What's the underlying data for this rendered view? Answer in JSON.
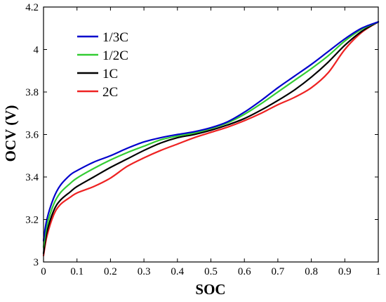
{
  "chart_data": {
    "type": "line",
    "xlabel": "SOC",
    "ylabel": "OCV (V)",
    "xlim": [
      0,
      1
    ],
    "ylim": [
      3,
      4.2
    ],
    "xticks": [
      "0",
      "0.1",
      "0.2",
      "0.3",
      "0.4",
      "0.5",
      "0.6",
      "0.7",
      "0.8",
      "0.9",
      "1"
    ],
    "yticks": [
      "3",
      "3.2",
      "3.4",
      "3.6",
      "3.8",
      "4",
      "4.2"
    ],
    "grid": false,
    "legend_position": "top-left",
    "x": [
      0,
      0.01,
      0.03,
      0.05,
      0.08,
      0.1,
      0.15,
      0.2,
      0.25,
      0.3,
      0.35,
      0.4,
      0.45,
      0.5,
      0.55,
      0.6,
      0.65,
      0.7,
      0.75,
      0.8,
      0.85,
      0.9,
      0.95,
      1
    ],
    "series": [
      {
        "name": "1/3C",
        "color": "#0000cc",
        "values": [
          3.1,
          3.2,
          3.3,
          3.36,
          3.41,
          3.43,
          3.47,
          3.5,
          3.535,
          3.565,
          3.585,
          3.6,
          3.613,
          3.632,
          3.66,
          3.705,
          3.76,
          3.82,
          3.875,
          3.93,
          3.99,
          4.05,
          4.1,
          4.13
        ]
      },
      {
        "name": "1/2C",
        "color": "#33cc33",
        "values": [
          3.07,
          3.17,
          3.27,
          3.325,
          3.37,
          3.395,
          3.44,
          3.48,
          3.515,
          3.545,
          3.575,
          3.593,
          3.607,
          3.628,
          3.655,
          3.695,
          3.745,
          3.8,
          3.855,
          3.91,
          3.97,
          4.04,
          4.095,
          4.13
        ]
      },
      {
        "name": "1C",
        "color": "#000000",
        "values": [
          3.04,
          3.14,
          3.24,
          3.29,
          3.33,
          3.355,
          3.4,
          3.445,
          3.485,
          3.525,
          3.56,
          3.585,
          3.6,
          3.62,
          3.645,
          3.675,
          3.715,
          3.76,
          3.81,
          3.87,
          3.94,
          4.02,
          4.085,
          4.13
        ]
      },
      {
        "name": "2C",
        "color": "#ee2222",
        "values": [
          3.03,
          3.12,
          3.22,
          3.27,
          3.305,
          3.325,
          3.355,
          3.395,
          3.45,
          3.49,
          3.525,
          3.555,
          3.585,
          3.61,
          3.635,
          3.665,
          3.7,
          3.74,
          3.775,
          3.82,
          3.89,
          4.0,
          4.08,
          4.13
        ]
      }
    ]
  }
}
